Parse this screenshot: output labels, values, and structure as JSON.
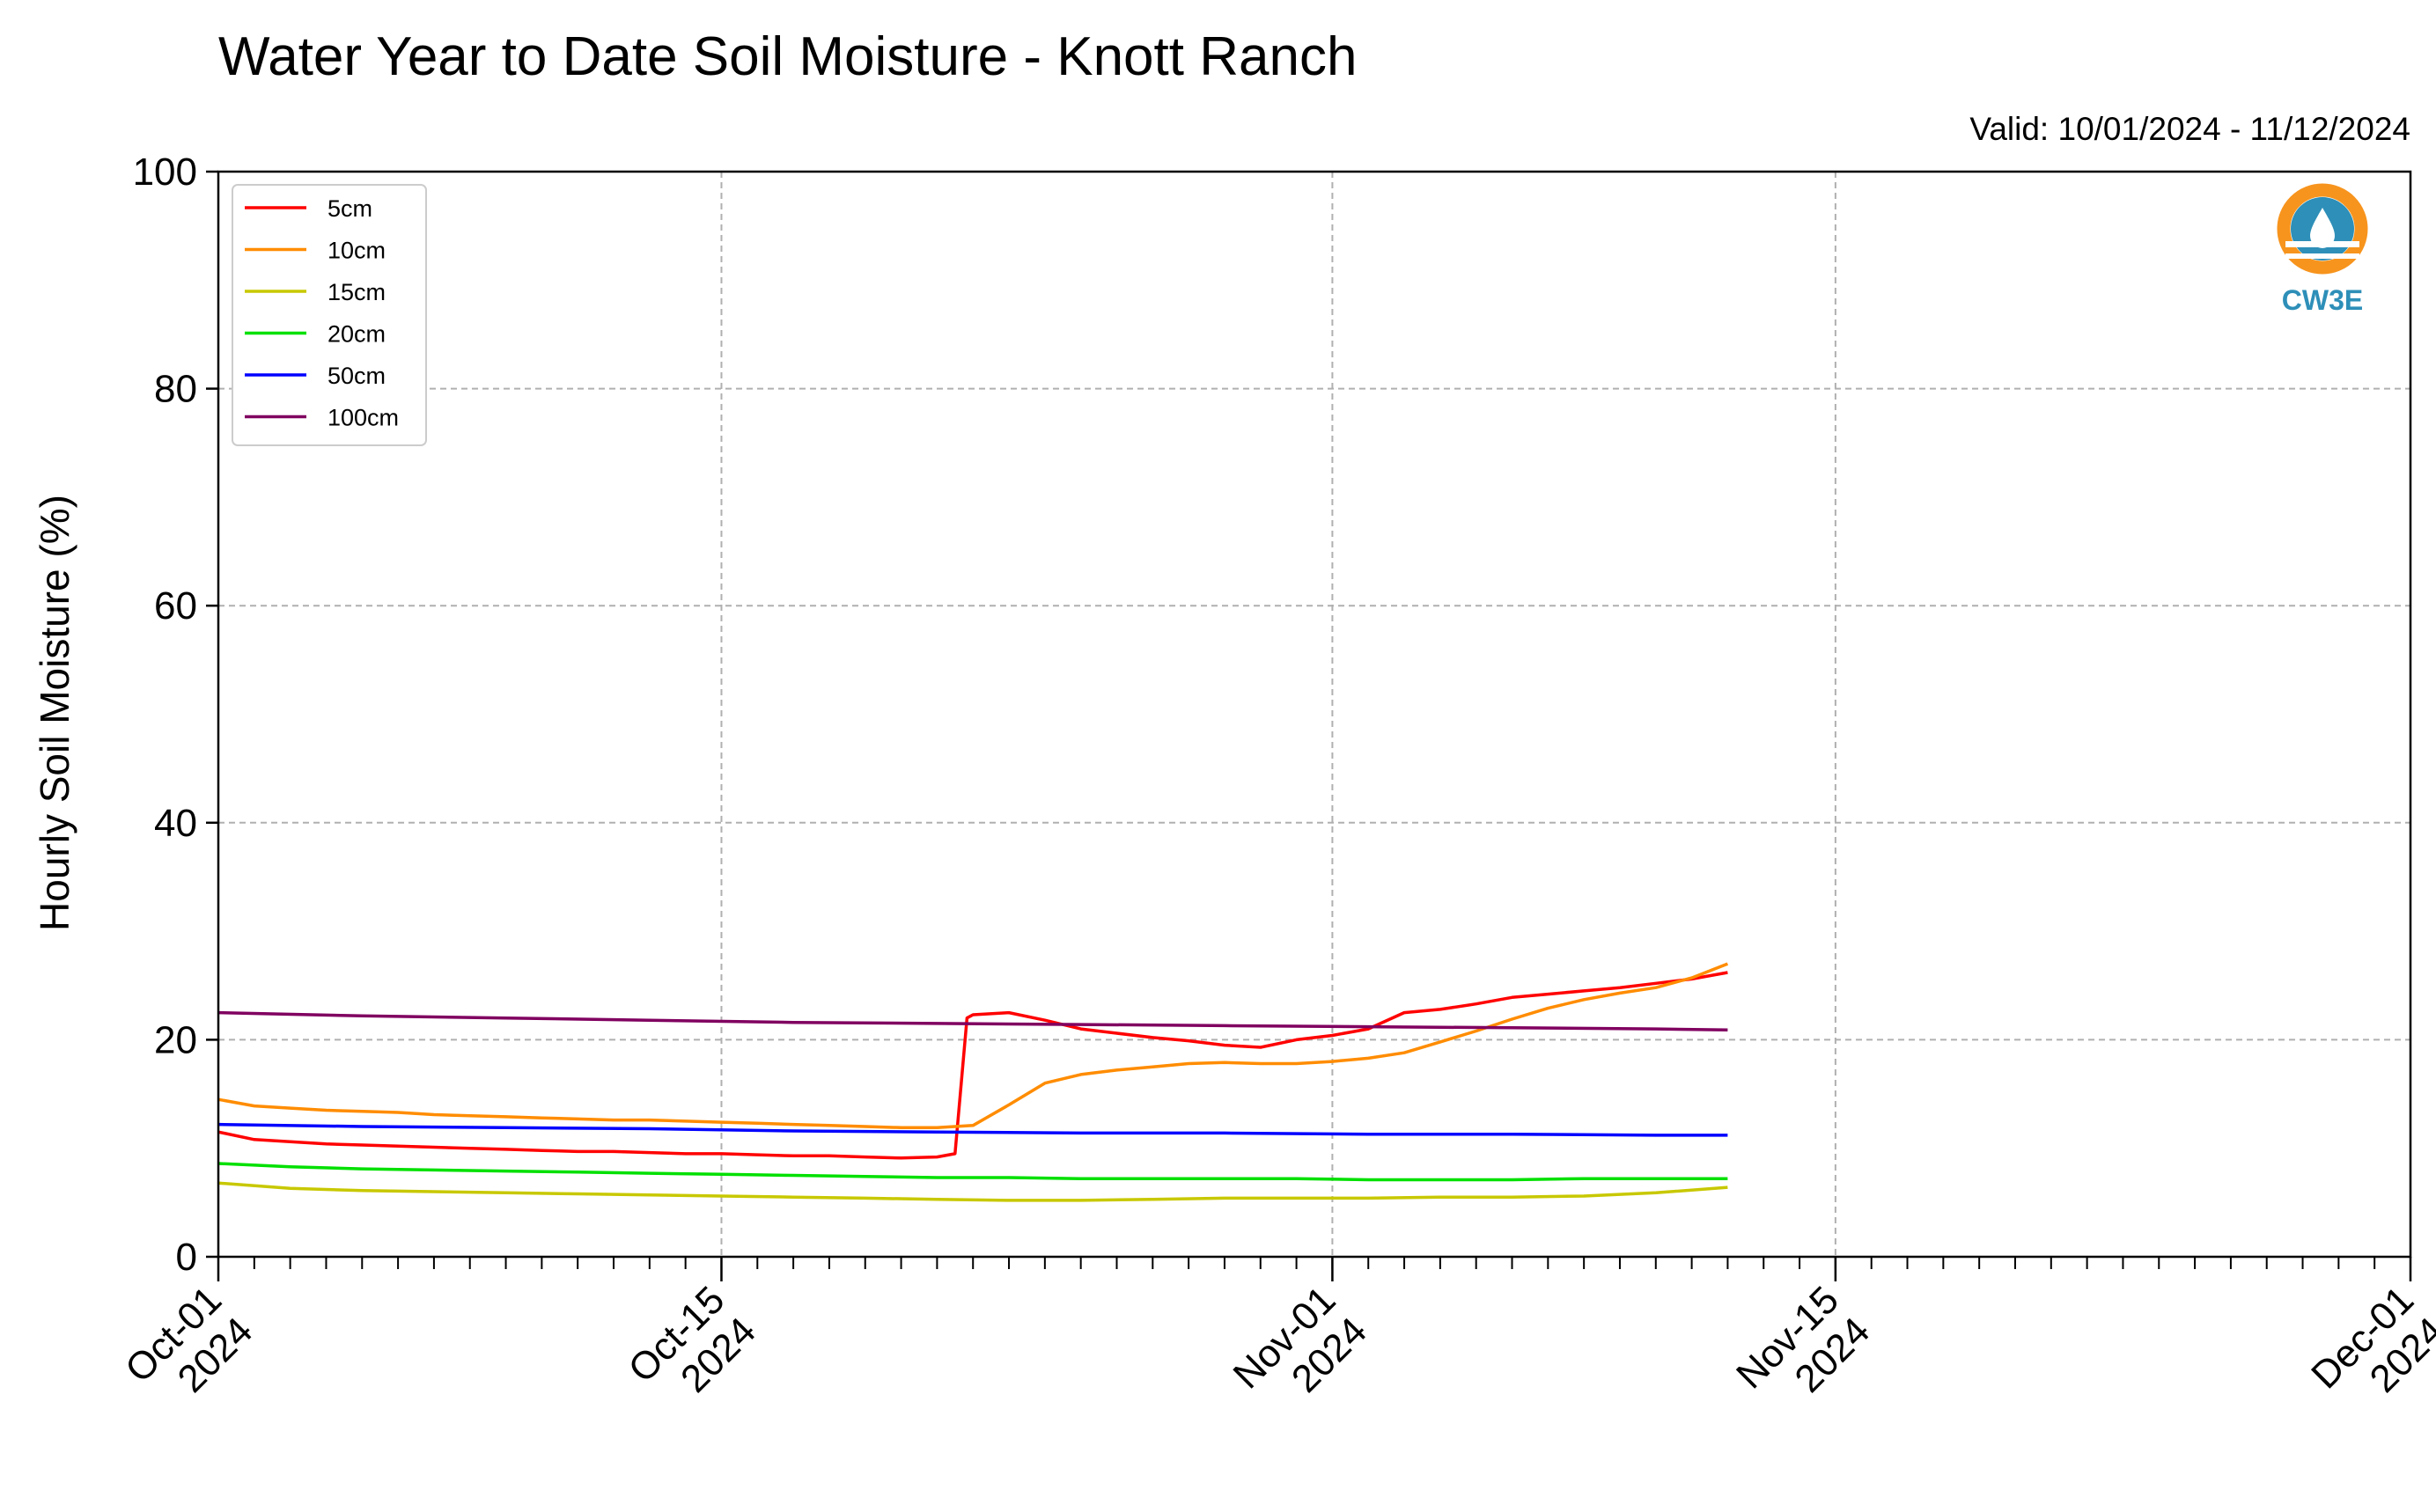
{
  "chart_data": {
    "type": "line",
    "title": "Water Year to Date Soil Moisture - Knott Ranch",
    "subtitle": "Valid: 10/01/2024 - 11/12/2024",
    "xlabel": "",
    "ylabel": "Hourly Soil Moisture (%)",
    "xlim": [
      "2024-10-01",
      "2024-12-01"
    ],
    "ylim": [
      0,
      100
    ],
    "yticks": [
      0,
      20,
      40,
      60,
      80,
      100
    ],
    "ytick_labels": [
      "0",
      "20",
      "40",
      "60",
      "80",
      "100"
    ],
    "xticks": [
      {
        "date": "2024-10-01",
        "line1": "Oct-01",
        "line2": "2024"
      },
      {
        "date": "2024-10-15",
        "line1": "Oct-15",
        "line2": "2024"
      },
      {
        "date": "2024-11-01",
        "line1": "Nov-01",
        "line2": "2024"
      },
      {
        "date": "2024-11-15",
        "line1": "Nov-15",
        "line2": "2024"
      },
      {
        "date": "2024-12-01",
        "line1": "Dec-01",
        "line2": "2024"
      }
    ],
    "grid": true,
    "legend_position": "top-left",
    "series": [
      {
        "name": "5cm",
        "color": "#ff0000",
        "points": [
          [
            "2024-10-01",
            11.5
          ],
          [
            "2024-10-02",
            10.8
          ],
          [
            "2024-10-03",
            10.6
          ],
          [
            "2024-10-04",
            10.4
          ],
          [
            "2024-10-05",
            10.3
          ],
          [
            "2024-10-06",
            10.2
          ],
          [
            "2024-10-07",
            10.1
          ],
          [
            "2024-10-08",
            10.0
          ],
          [
            "2024-10-09",
            9.9
          ],
          [
            "2024-10-10",
            9.8
          ],
          [
            "2024-10-11",
            9.7
          ],
          [
            "2024-10-12",
            9.7
          ],
          [
            "2024-10-13",
            9.6
          ],
          [
            "2024-10-14",
            9.5
          ],
          [
            "2024-10-15",
            9.5
          ],
          [
            "2024-10-16",
            9.4
          ],
          [
            "2024-10-17",
            9.3
          ],
          [
            "2024-10-18",
            9.3
          ],
          [
            "2024-10-19",
            9.2
          ],
          [
            "2024-10-20",
            9.1
          ],
          [
            "2024-10-21",
            9.2
          ],
          [
            "2024-10-21T12:00",
            9.5
          ],
          [
            "2024-10-21T20:00",
            22.0
          ],
          [
            "2024-10-22",
            22.3
          ],
          [
            "2024-10-23",
            22.5
          ],
          [
            "2024-10-24",
            21.8
          ],
          [
            "2024-10-25",
            21.0
          ],
          [
            "2024-10-26",
            20.6
          ],
          [
            "2024-10-27",
            20.2
          ],
          [
            "2024-10-28",
            19.9
          ],
          [
            "2024-10-29",
            19.5
          ],
          [
            "2024-10-30",
            19.3
          ],
          [
            "2024-10-31",
            20.0
          ],
          [
            "2024-11-01",
            20.4
          ],
          [
            "2024-11-02",
            21.0
          ],
          [
            "2024-11-03",
            22.5
          ],
          [
            "2024-11-04",
            22.8
          ],
          [
            "2024-11-05",
            23.3
          ],
          [
            "2024-11-06",
            23.9
          ],
          [
            "2024-11-07",
            24.2
          ],
          [
            "2024-11-08",
            24.5
          ],
          [
            "2024-11-09",
            24.8
          ],
          [
            "2024-11-10",
            25.2
          ],
          [
            "2024-11-11",
            25.6
          ],
          [
            "2024-11-12",
            26.2
          ]
        ]
      },
      {
        "name": "10cm",
        "color": "#ff8c00",
        "points": [
          [
            "2024-10-01",
            14.5
          ],
          [
            "2024-10-02",
            13.9
          ],
          [
            "2024-10-03",
            13.7
          ],
          [
            "2024-10-04",
            13.5
          ],
          [
            "2024-10-05",
            13.4
          ],
          [
            "2024-10-06",
            13.3
          ],
          [
            "2024-10-07",
            13.1
          ],
          [
            "2024-10-08",
            13.0
          ],
          [
            "2024-10-09",
            12.9
          ],
          [
            "2024-10-10",
            12.8
          ],
          [
            "2024-10-11",
            12.7
          ],
          [
            "2024-10-12",
            12.6
          ],
          [
            "2024-10-13",
            12.6
          ],
          [
            "2024-10-14",
            12.5
          ],
          [
            "2024-10-15",
            12.4
          ],
          [
            "2024-10-16",
            12.3
          ],
          [
            "2024-10-17",
            12.2
          ],
          [
            "2024-10-18",
            12.1
          ],
          [
            "2024-10-19",
            12.0
          ],
          [
            "2024-10-20",
            11.9
          ],
          [
            "2024-10-21",
            11.9
          ],
          [
            "2024-10-22",
            12.1
          ],
          [
            "2024-10-23",
            14.0
          ],
          [
            "2024-10-24",
            16.0
          ],
          [
            "2024-10-25",
            16.8
          ],
          [
            "2024-10-26",
            17.2
          ],
          [
            "2024-10-27",
            17.5
          ],
          [
            "2024-10-28",
            17.8
          ],
          [
            "2024-10-29",
            17.9
          ],
          [
            "2024-10-30",
            17.8
          ],
          [
            "2024-10-31",
            17.8
          ],
          [
            "2024-11-01",
            18.0
          ],
          [
            "2024-11-02",
            18.3
          ],
          [
            "2024-11-03",
            18.8
          ],
          [
            "2024-11-04",
            19.8
          ],
          [
            "2024-11-05",
            20.8
          ],
          [
            "2024-11-06",
            21.9
          ],
          [
            "2024-11-07",
            22.9
          ],
          [
            "2024-11-08",
            23.7
          ],
          [
            "2024-11-09",
            24.3
          ],
          [
            "2024-11-10",
            24.8
          ],
          [
            "2024-11-11",
            25.7
          ],
          [
            "2024-11-12",
            27.0
          ]
        ]
      },
      {
        "name": "15cm",
        "color": "#c8c800",
        "points": [
          [
            "2024-10-01",
            6.8
          ],
          [
            "2024-10-03",
            6.3
          ],
          [
            "2024-10-05",
            6.1
          ],
          [
            "2024-10-07",
            6.0
          ],
          [
            "2024-10-09",
            5.9
          ],
          [
            "2024-10-11",
            5.8
          ],
          [
            "2024-10-13",
            5.7
          ],
          [
            "2024-10-15",
            5.6
          ],
          [
            "2024-10-17",
            5.5
          ],
          [
            "2024-10-19",
            5.4
          ],
          [
            "2024-10-21",
            5.3
          ],
          [
            "2024-10-23",
            5.2
          ],
          [
            "2024-10-25",
            5.2
          ],
          [
            "2024-10-27",
            5.3
          ],
          [
            "2024-10-29",
            5.4
          ],
          [
            "2024-10-31",
            5.4
          ],
          [
            "2024-11-02",
            5.4
          ],
          [
            "2024-11-04",
            5.5
          ],
          [
            "2024-11-06",
            5.5
          ],
          [
            "2024-11-08",
            5.6
          ],
          [
            "2024-11-10",
            5.9
          ],
          [
            "2024-11-12",
            6.4
          ]
        ]
      },
      {
        "name": "20cm",
        "color": "#00e000",
        "points": [
          [
            "2024-10-01",
            8.6
          ],
          [
            "2024-10-03",
            8.3
          ],
          [
            "2024-10-05",
            8.1
          ],
          [
            "2024-10-07",
            8.0
          ],
          [
            "2024-10-09",
            7.9
          ],
          [
            "2024-10-11",
            7.8
          ],
          [
            "2024-10-13",
            7.7
          ],
          [
            "2024-10-15",
            7.6
          ],
          [
            "2024-10-17",
            7.5
          ],
          [
            "2024-10-19",
            7.4
          ],
          [
            "2024-10-21",
            7.3
          ],
          [
            "2024-10-23",
            7.3
          ],
          [
            "2024-10-25",
            7.2
          ],
          [
            "2024-10-27",
            7.2
          ],
          [
            "2024-10-29",
            7.2
          ],
          [
            "2024-10-31",
            7.2
          ],
          [
            "2024-11-02",
            7.1
          ],
          [
            "2024-11-04",
            7.1
          ],
          [
            "2024-11-06",
            7.1
          ],
          [
            "2024-11-08",
            7.2
          ],
          [
            "2024-11-10",
            7.2
          ],
          [
            "2024-11-12",
            7.2
          ]
        ]
      },
      {
        "name": "50cm",
        "color": "#0000ff",
        "points": [
          [
            "2024-10-01",
            12.2
          ],
          [
            "2024-10-05",
            12.0
          ],
          [
            "2024-10-09",
            11.9
          ],
          [
            "2024-10-13",
            11.8
          ],
          [
            "2024-10-17",
            11.6
          ],
          [
            "2024-10-21",
            11.5
          ],
          [
            "2024-10-25",
            11.4
          ],
          [
            "2024-10-29",
            11.4
          ],
          [
            "2024-11-02",
            11.3
          ],
          [
            "2024-11-06",
            11.3
          ],
          [
            "2024-11-10",
            11.2
          ],
          [
            "2024-11-12",
            11.2
          ]
        ]
      },
      {
        "name": "100cm",
        "color": "#800060",
        "points": [
          [
            "2024-10-01",
            22.5
          ],
          [
            "2024-10-05",
            22.2
          ],
          [
            "2024-10-09",
            22.0
          ],
          [
            "2024-10-13",
            21.8
          ],
          [
            "2024-10-17",
            21.6
          ],
          [
            "2024-10-21",
            21.5
          ],
          [
            "2024-10-25",
            21.4
          ],
          [
            "2024-10-29",
            21.3
          ],
          [
            "2024-11-02",
            21.2
          ],
          [
            "2024-11-06",
            21.1
          ],
          [
            "2024-11-10",
            21.0
          ],
          [
            "2024-11-12",
            20.9
          ]
        ]
      }
    ]
  },
  "logo": {
    "text": "CW3E",
    "orange": "#f7941d",
    "blue": "#2e8fb8"
  },
  "colors": {
    "grid": "#b0b0b0",
    "axis": "#000000"
  }
}
